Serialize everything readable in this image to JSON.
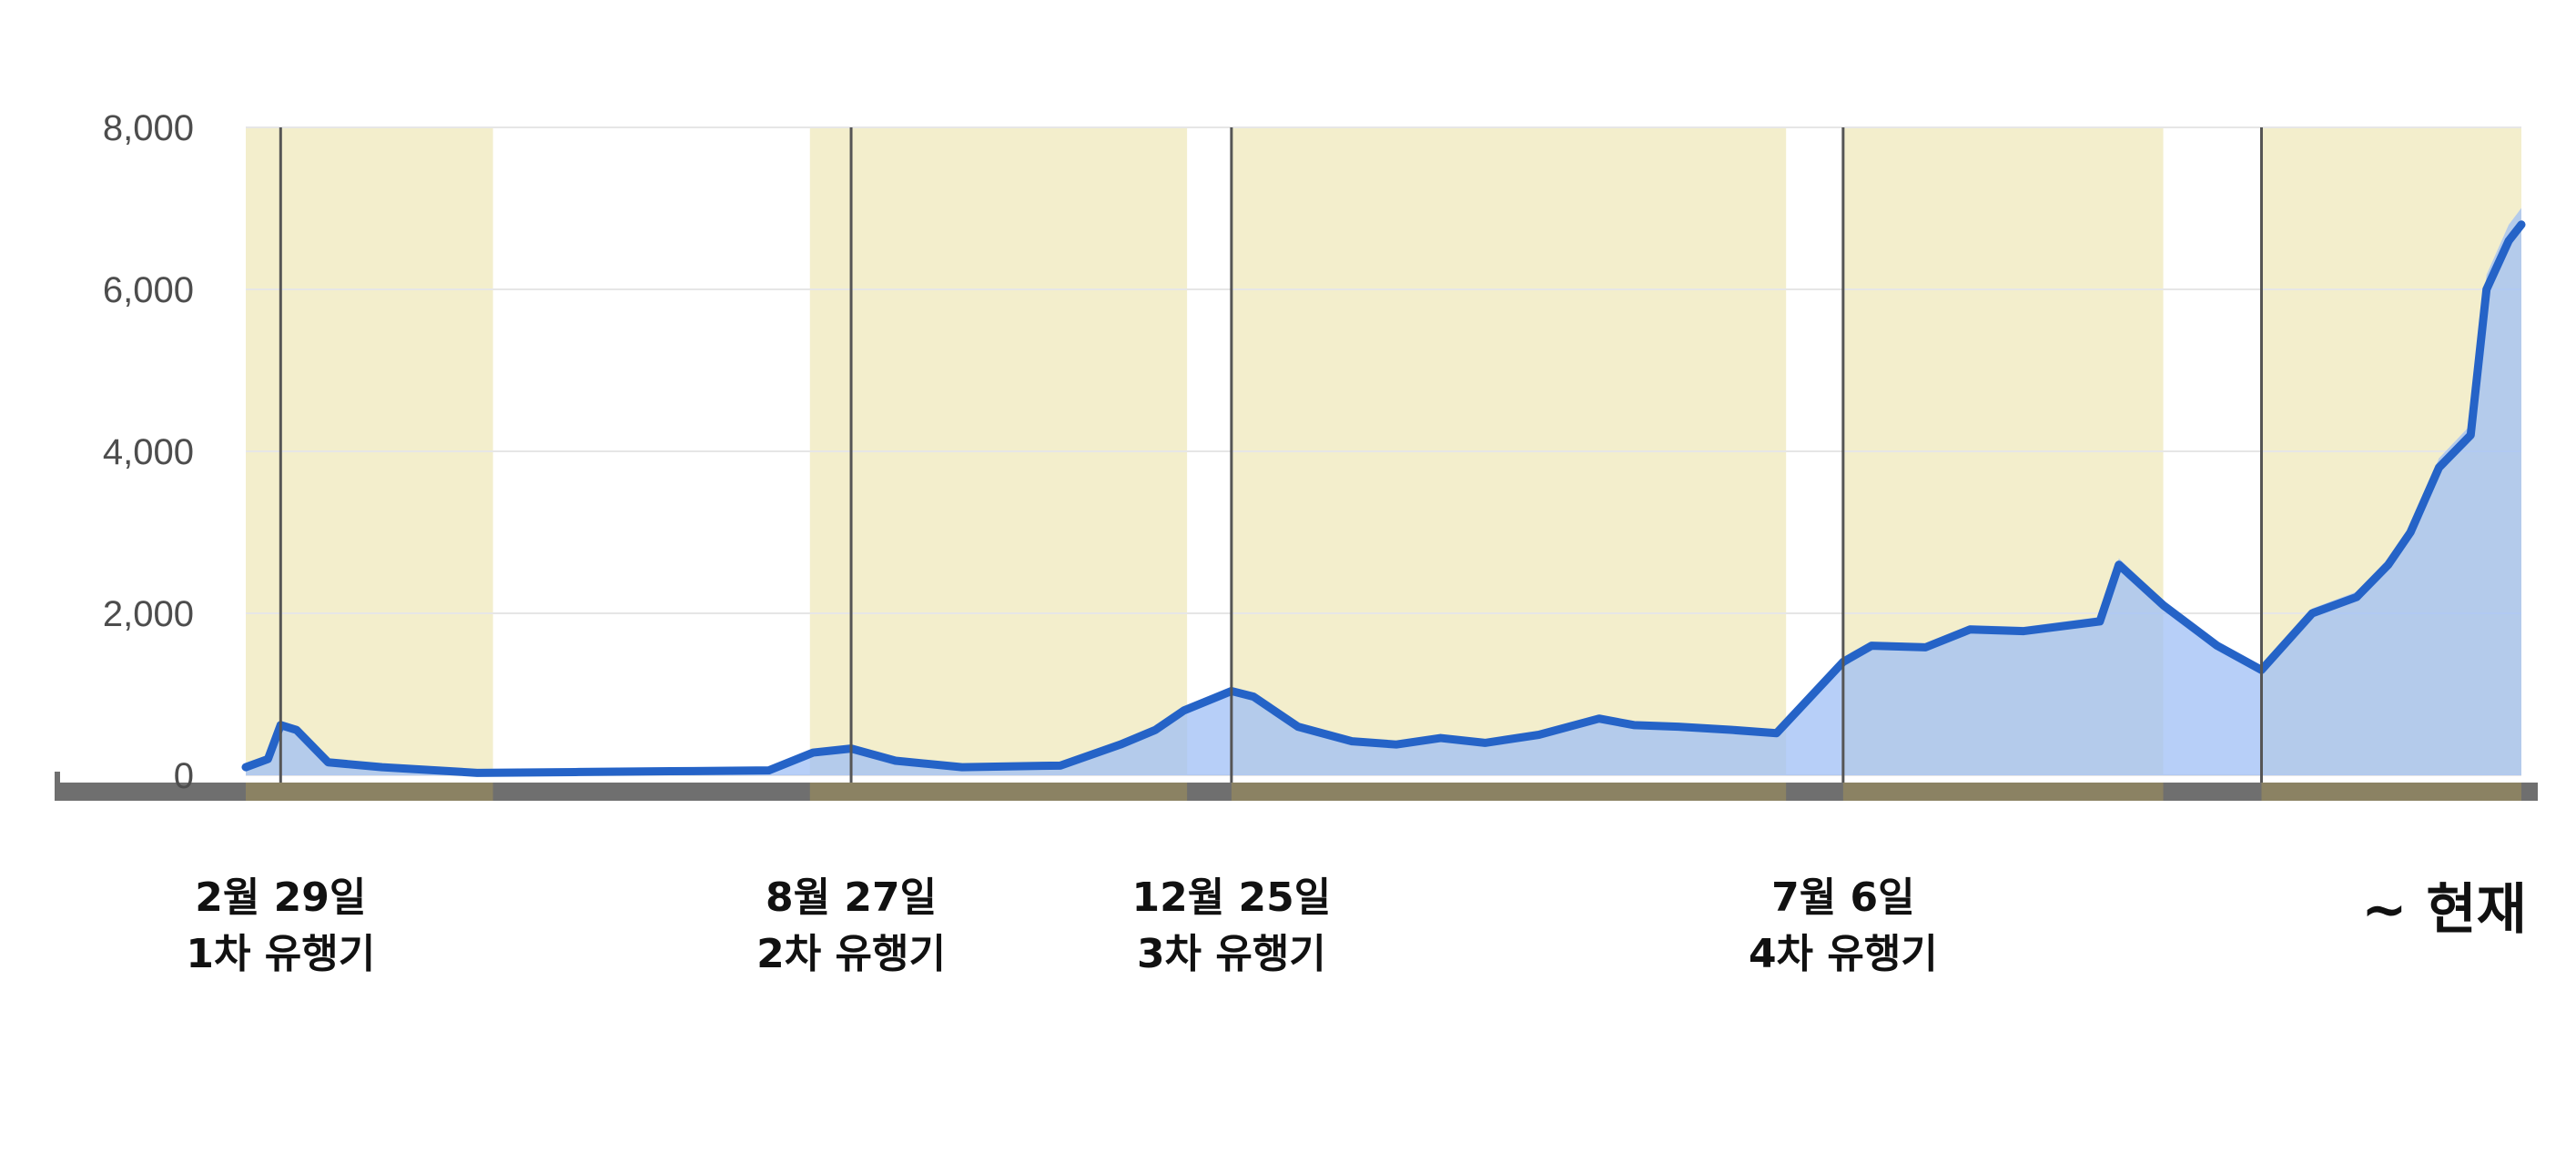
{
  "chart_data": {
    "type": "area",
    "title": "",
    "xlabel": "",
    "ylabel": "",
    "ylim": [
      0,
      8000
    ],
    "y_ticks": [
      "0",
      "2,000",
      "4,000",
      "6,000",
      "8,000"
    ],
    "grid": true,
    "legend": "none",
    "colors": {
      "daily_bars": "#9fbff5",
      "moving_average": "#2563c7",
      "wave_shading": "#f3eecc",
      "axis_band": "#6f6f6f",
      "axis_band_wave": "#8b8263",
      "divider": "#555555"
    },
    "x": [
      "2020-02-18",
      "2020-02-25",
      "2020-02-29",
      "2020-03-05",
      "2020-03-15",
      "2020-04-01",
      "2020-05-01",
      "2020-06-01",
      "2020-07-01",
      "2020-08-01",
      "2020-08-15",
      "2020-08-27",
      "2020-09-10",
      "2020-10-01",
      "2020-11-01",
      "2020-11-20",
      "2020-12-01",
      "2020-12-10",
      "2020-12-25",
      "2021-01-01",
      "2021-01-15",
      "2021-02-01",
      "2021-02-15",
      "2021-03-01",
      "2021-03-15",
      "2021-04-01",
      "2021-04-20",
      "2021-05-01",
      "2021-05-15",
      "2021-06-01",
      "2021-06-15",
      "2021-07-06",
      "2021-07-15",
      "2021-08-01",
      "2021-08-15",
      "2021-09-01",
      "2021-09-25",
      "2021-10-01",
      "2021-10-15",
      "2021-11-01",
      "2021-11-15",
      "2021-12-01",
      "2021-12-15",
      "2021-12-25",
      "2022-01-01",
      "2022-01-10",
      "2022-01-20",
      "2022-01-25",
      "2022-02-01",
      "2022-02-05"
    ],
    "series": [
      {
        "values": [
          100,
          200,
          620,
          560,
          160,
          100,
          30,
          40,
          50,
          60,
          280,
          330,
          180,
          100,
          120,
          380,
          560,
          800,
          1040,
          970,
          600,
          420,
          380,
          460,
          400,
          500,
          700,
          620,
          600,
          560,
          520,
          1400,
          1600,
          1580,
          1800,
          1780,
          1900,
          2600,
          2100,
          1600,
          1300,
          2000,
          2200,
          2600,
          3000,
          3800,
          4200,
          6000,
          6600,
          6800
        ]
      }
    ],
    "waves": [
      {
        "start": "2020-02-18",
        "marker": "2020-02-29",
        "end": "2020-05-06",
        "label_date": "2월 29일",
        "label_name": "1차 유행기"
      },
      {
        "start": "2020-08-14",
        "marker": "2020-08-27",
        "end": "2020-12-11",
        "label_date": "8월 27일",
        "label_name": "2차 유행기"
      },
      {
        "start": "2020-12-25",
        "marker": "2020-12-25",
        "end": "2021-06-18",
        "label_date": "12월 25일",
        "label_name": "3차 유행기"
      },
      {
        "start": "2021-07-06",
        "marker": "2021-07-06",
        "end": "2021-10-15",
        "label_date": "7월 6일",
        "label_name": "4차 유행기"
      },
      {
        "start": "2021-11-15",
        "marker": "2021-11-15",
        "end": "2022-02-05",
        "label_date": "",
        "label_name": "~ 현재"
      }
    ]
  }
}
